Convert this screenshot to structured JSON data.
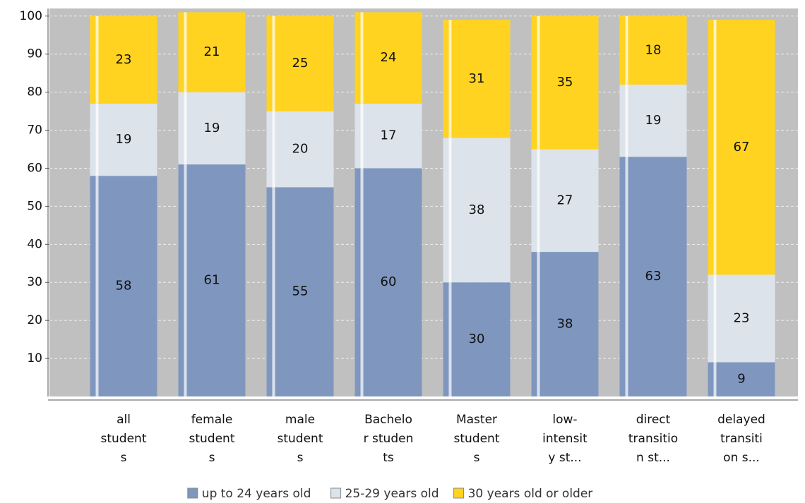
{
  "chart_data": {
    "type": "stacked_bar",
    "categories": [
      [
        "all",
        "student",
        "s"
      ],
      [
        "female",
        "student",
        "s"
      ],
      [
        "male",
        "student",
        "s"
      ],
      [
        "Bachelo",
        "r studen",
        "ts"
      ],
      [
        "Master",
        "student",
        "s"
      ],
      [
        "low-",
        "intensit",
        "y st..."
      ],
      [
        "direct",
        "transitio",
        "n st..."
      ],
      [
        "delayed",
        "transiti",
        "on s..."
      ]
    ],
    "series": [
      {
        "name": "up to 24 years old",
        "color": "#7f97bf",
        "values": [
          58,
          61,
          55,
          60,
          30,
          38,
          63,
          9
        ]
      },
      {
        "name": "25-29 years old",
        "color": "#dde3ea",
        "values": [
          19,
          19,
          20,
          17,
          38,
          27,
          19,
          23
        ]
      },
      {
        "name": "30 years old or older",
        "color": "#ffd320",
        "values": [
          23,
          21,
          25,
          24,
          31,
          35,
          18,
          67
        ]
      }
    ],
    "ylim": [
      0,
      102
    ],
    "yticks": [
      10,
      20,
      30,
      40,
      50,
      60,
      70,
      80,
      90,
      100
    ],
    "grid": true,
    "legend": "bottom"
  }
}
